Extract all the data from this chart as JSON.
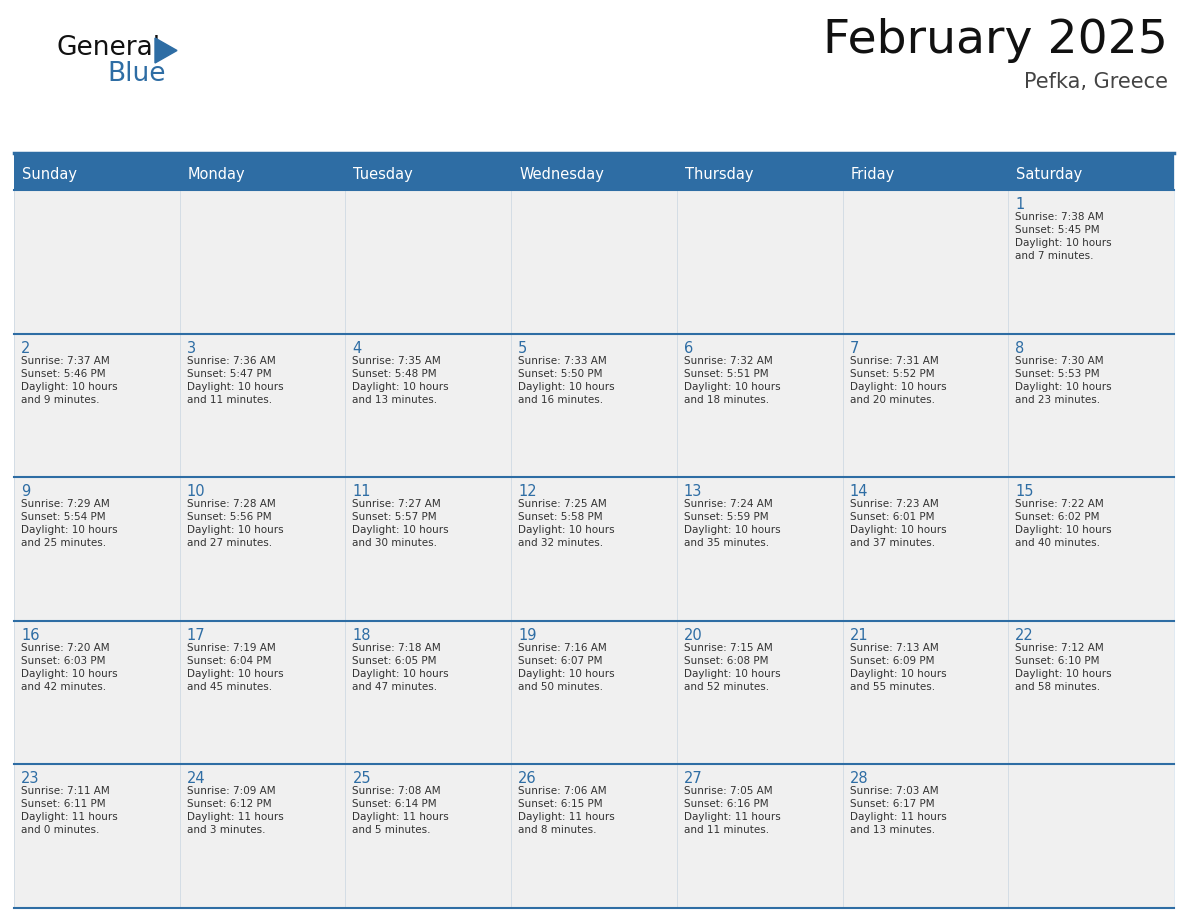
{
  "title": "February 2025",
  "subtitle": "Pefka, Greece",
  "header_bg_color": "#2E6DA4",
  "header_text_color": "#FFFFFF",
  "cell_bg_color": "#F0F0F0",
  "day_number_color": "#2E6DA4",
  "cell_text_color": "#333333",
  "line_color": "#2E6DA4",
  "days_of_week": [
    "Sunday",
    "Monday",
    "Tuesday",
    "Wednesday",
    "Thursday",
    "Friday",
    "Saturday"
  ],
  "weeks": [
    [
      {
        "day": "",
        "info": ""
      },
      {
        "day": "",
        "info": ""
      },
      {
        "day": "",
        "info": ""
      },
      {
        "day": "",
        "info": ""
      },
      {
        "day": "",
        "info": ""
      },
      {
        "day": "",
        "info": ""
      },
      {
        "day": "1",
        "info": "Sunrise: 7:38 AM\nSunset: 5:45 PM\nDaylight: 10 hours\nand 7 minutes."
      }
    ],
    [
      {
        "day": "2",
        "info": "Sunrise: 7:37 AM\nSunset: 5:46 PM\nDaylight: 10 hours\nand 9 minutes."
      },
      {
        "day": "3",
        "info": "Sunrise: 7:36 AM\nSunset: 5:47 PM\nDaylight: 10 hours\nand 11 minutes."
      },
      {
        "day": "4",
        "info": "Sunrise: 7:35 AM\nSunset: 5:48 PM\nDaylight: 10 hours\nand 13 minutes."
      },
      {
        "day": "5",
        "info": "Sunrise: 7:33 AM\nSunset: 5:50 PM\nDaylight: 10 hours\nand 16 minutes."
      },
      {
        "day": "6",
        "info": "Sunrise: 7:32 AM\nSunset: 5:51 PM\nDaylight: 10 hours\nand 18 minutes."
      },
      {
        "day": "7",
        "info": "Sunrise: 7:31 AM\nSunset: 5:52 PM\nDaylight: 10 hours\nand 20 minutes."
      },
      {
        "day": "8",
        "info": "Sunrise: 7:30 AM\nSunset: 5:53 PM\nDaylight: 10 hours\nand 23 minutes."
      }
    ],
    [
      {
        "day": "9",
        "info": "Sunrise: 7:29 AM\nSunset: 5:54 PM\nDaylight: 10 hours\nand 25 minutes."
      },
      {
        "day": "10",
        "info": "Sunrise: 7:28 AM\nSunset: 5:56 PM\nDaylight: 10 hours\nand 27 minutes."
      },
      {
        "day": "11",
        "info": "Sunrise: 7:27 AM\nSunset: 5:57 PM\nDaylight: 10 hours\nand 30 minutes."
      },
      {
        "day": "12",
        "info": "Sunrise: 7:25 AM\nSunset: 5:58 PM\nDaylight: 10 hours\nand 32 minutes."
      },
      {
        "day": "13",
        "info": "Sunrise: 7:24 AM\nSunset: 5:59 PM\nDaylight: 10 hours\nand 35 minutes."
      },
      {
        "day": "14",
        "info": "Sunrise: 7:23 AM\nSunset: 6:01 PM\nDaylight: 10 hours\nand 37 minutes."
      },
      {
        "day": "15",
        "info": "Sunrise: 7:22 AM\nSunset: 6:02 PM\nDaylight: 10 hours\nand 40 minutes."
      }
    ],
    [
      {
        "day": "16",
        "info": "Sunrise: 7:20 AM\nSunset: 6:03 PM\nDaylight: 10 hours\nand 42 minutes."
      },
      {
        "day": "17",
        "info": "Sunrise: 7:19 AM\nSunset: 6:04 PM\nDaylight: 10 hours\nand 45 minutes."
      },
      {
        "day": "18",
        "info": "Sunrise: 7:18 AM\nSunset: 6:05 PM\nDaylight: 10 hours\nand 47 minutes."
      },
      {
        "day": "19",
        "info": "Sunrise: 7:16 AM\nSunset: 6:07 PM\nDaylight: 10 hours\nand 50 minutes."
      },
      {
        "day": "20",
        "info": "Sunrise: 7:15 AM\nSunset: 6:08 PM\nDaylight: 10 hours\nand 52 minutes."
      },
      {
        "day": "21",
        "info": "Sunrise: 7:13 AM\nSunset: 6:09 PM\nDaylight: 10 hours\nand 55 minutes."
      },
      {
        "day": "22",
        "info": "Sunrise: 7:12 AM\nSunset: 6:10 PM\nDaylight: 10 hours\nand 58 minutes."
      }
    ],
    [
      {
        "day": "23",
        "info": "Sunrise: 7:11 AM\nSunset: 6:11 PM\nDaylight: 11 hours\nand 0 minutes."
      },
      {
        "day": "24",
        "info": "Sunrise: 7:09 AM\nSunset: 6:12 PM\nDaylight: 11 hours\nand 3 minutes."
      },
      {
        "day": "25",
        "info": "Sunrise: 7:08 AM\nSunset: 6:14 PM\nDaylight: 11 hours\nand 5 minutes."
      },
      {
        "day": "26",
        "info": "Sunrise: 7:06 AM\nSunset: 6:15 PM\nDaylight: 11 hours\nand 8 minutes."
      },
      {
        "day": "27",
        "info": "Sunrise: 7:05 AM\nSunset: 6:16 PM\nDaylight: 11 hours\nand 11 minutes."
      },
      {
        "day": "28",
        "info": "Sunrise: 7:03 AM\nSunset: 6:17 PM\nDaylight: 11 hours\nand 13 minutes."
      },
      {
        "day": "",
        "info": ""
      }
    ]
  ],
  "logo_color_general": "#111111",
  "logo_color_blue": "#2E6DA4",
  "logo_triangle_color": "#2E6DA4",
  "fig_width": 11.88,
  "fig_height": 9.18,
  "dpi": 100
}
